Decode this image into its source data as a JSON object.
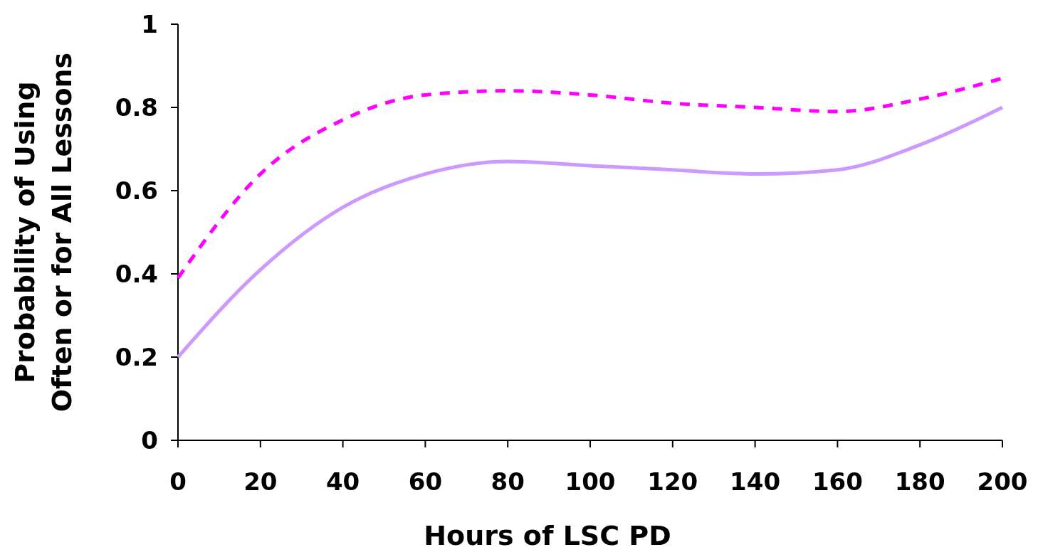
{
  "chart_data": {
    "type": "line",
    "xlabel": "Hours of LSC PD",
    "ylabel": "Probability of Using\nOften or for All Lessons",
    "x": [
      0,
      20,
      40,
      60,
      80,
      100,
      120,
      140,
      160,
      180,
      200
    ],
    "xlim": [
      0,
      200
    ],
    "xticks": [
      0,
      20,
      40,
      60,
      80,
      100,
      120,
      140,
      160,
      180,
      200
    ],
    "ylim": [
      0,
      1
    ],
    "yticks": [
      0,
      0.2,
      0.4,
      0.6,
      0.8,
      1
    ],
    "grid": false,
    "series": [
      {
        "color": "#ff00ff",
        "line_style": "dashed",
        "values": [
          0.39,
          0.64,
          0.77,
          0.83,
          0.84,
          0.83,
          0.81,
          0.8,
          0.79,
          0.82,
          0.87
        ]
      },
      {
        "color": "#cc99ff",
        "line_style": "solid",
        "values": [
          0.2,
          0.41,
          0.56,
          0.64,
          0.67,
          0.66,
          0.65,
          0.64,
          0.65,
          0.71,
          0.8
        ]
      }
    ]
  }
}
